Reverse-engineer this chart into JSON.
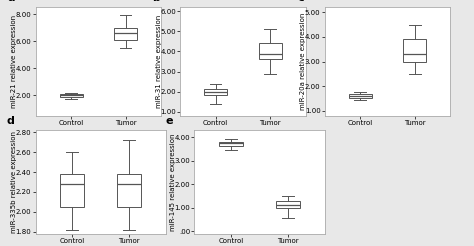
{
  "panels": [
    {
      "label": "a",
      "ylabel": "miR-21 relative expression",
      "categories": [
        "Control",
        "Tumor"
      ],
      "boxes": [
        {
          "q1": 1.9,
          "median": 2.0,
          "q3": 2.1,
          "whislo": 1.7,
          "whishi": 2.2
        },
        {
          "q1": 6.1,
          "median": 6.6,
          "q3": 7.0,
          "whislo": 5.5,
          "whishi": 7.9
        }
      ],
      "ylim": [
        0.5,
        8.5
      ],
      "yticks": [
        2.0,
        4.0,
        6.0,
        8.0
      ],
      "yticklabels": [
        "2.00",
        "4.00",
        "6.00",
        "8.00"
      ]
    },
    {
      "label": "b",
      "ylabel": "miR-31 relative expression",
      "categories": [
        "Control",
        "Tumor"
      ],
      "boxes": [
        {
          "q1": 1.85,
          "median": 2.0,
          "q3": 2.15,
          "whislo": 1.4,
          "whishi": 2.4
        },
        {
          "q1": 3.6,
          "median": 3.85,
          "q3": 4.4,
          "whislo": 2.9,
          "whishi": 5.1
        }
      ],
      "ylim": [
        0.8,
        6.2
      ],
      "yticks": [
        1.0,
        2.0,
        3.0,
        4.0,
        5.0,
        6.0
      ],
      "yticklabels": [
        "1.00",
        "2.00",
        "3.00",
        "4.00",
        "5.00",
        "6.00"
      ]
    },
    {
      "label": "c",
      "ylabel": "miR-20a relative expression",
      "categories": [
        "Control",
        "Tumor"
      ],
      "boxes": [
        {
          "q1": 1.52,
          "median": 1.6,
          "q3": 1.68,
          "whislo": 1.42,
          "whishi": 1.78
        },
        {
          "q1": 3.0,
          "median": 3.3,
          "q3": 3.9,
          "whislo": 2.5,
          "whishi": 4.5
        }
      ],
      "ylim": [
        0.8,
        5.2
      ],
      "yticks": [
        1.0,
        2.0,
        3.0,
        4.0,
        5.0
      ],
      "yticklabels": [
        "1.00",
        "2.00",
        "3.00",
        "4.00",
        "5.00"
      ]
    },
    {
      "label": "d",
      "ylabel": "miR-335b relative expression",
      "categories": [
        "Control",
        "Tumor"
      ],
      "boxes": [
        {
          "q1": 2.05,
          "median": 2.28,
          "q3": 2.38,
          "whislo": 1.82,
          "whishi": 2.6
        },
        {
          "q1": 2.05,
          "median": 2.28,
          "q3": 2.38,
          "whislo": 1.82,
          "whishi": 2.72
        }
      ],
      "ylim": [
        1.78,
        2.82
      ],
      "yticks": [
        1.8,
        2.0,
        2.2,
        2.4,
        2.6,
        2.8
      ],
      "yticklabels": [
        "1.80",
        "2.00",
        "2.20",
        "2.40",
        "2.60",
        "2.80"
      ]
    },
    {
      "label": "e",
      "ylabel": "miR-145 relative expression",
      "categories": [
        "Control",
        "Tumor"
      ],
      "boxes": [
        {
          "q1": 3.65,
          "median": 3.75,
          "q3": 3.82,
          "whislo": 3.48,
          "whishi": 3.92
        },
        {
          "q1": 1.0,
          "median": 1.12,
          "q3": 1.28,
          "whislo": 0.55,
          "whishi": 1.5
        }
      ],
      "ylim": [
        -0.1,
        4.3
      ],
      "yticks": [
        0.0,
        1.0,
        2.0,
        3.0,
        4.0
      ],
      "yticklabels": [
        ".00",
        "1.00",
        "2.00",
        "3.00",
        "4.00"
      ]
    }
  ],
  "box_facecolor": "#ffffff",
  "box_edgecolor": "#555555",
  "median_color": "#555555",
  "whisker_color": "#555555",
  "cap_color": "#555555",
  "bg_color": "#ffffff",
  "figure_bg": "#e8e8e8",
  "tick_fontsize": 5,
  "label_fontsize": 5.0,
  "cat_fontsize": 6,
  "panel_label_fontsize": 8
}
